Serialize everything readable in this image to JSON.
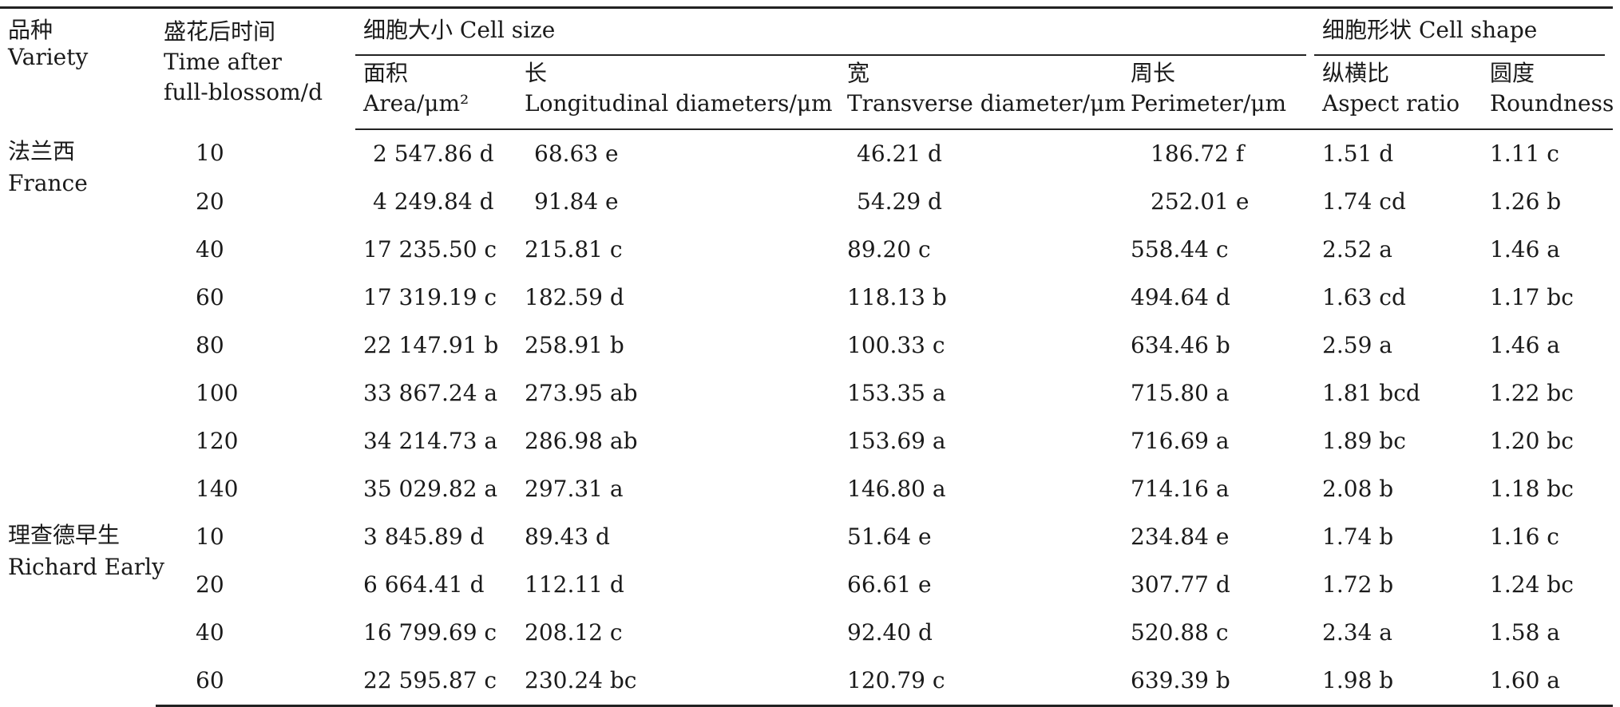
{
  "headers": {
    "variety": [
      "品种",
      "Variety"
    ],
    "time": [
      "盛花后时间",
      "Time after",
      "full-blossom/d"
    ],
    "cell_size": "细胞大小 Cell size",
    "cell_shape": "细胞形状 Cell shape",
    "area": [
      "面积",
      "Area/μm²"
    ],
    "longitudinal": [
      "长",
      "Longitudinal diameters/μm"
    ],
    "transverse": [
      "宽",
      "Transverse diameter/μm"
    ],
    "perimeter": [
      "周长",
      "Perimeter/μm"
    ],
    "aspect": [
      "纵横比",
      "Aspect ratio"
    ],
    "roundness": [
      "圆度",
      "Roundness"
    ]
  },
  "groups": [
    {
      "variety": [
        "法兰西",
        "France"
      ],
      "rows": [
        [
          "10",
          "2 547.86 d",
          "68.63 e",
          "46.21 d",
          "186.72 f",
          "1.51 d",
          "1.11 c"
        ],
        [
          "20",
          "4 249.84 d",
          "91.84 e",
          "54.29 d",
          "252.01 e",
          "1.74 cd",
          "1.26 b"
        ],
        [
          "40",
          "17 235.50 c",
          "215.81 c",
          "89.20 c",
          "558.44 c",
          "2.52 a",
          "1.46 a"
        ],
        [
          "60",
          "17 319.19 c",
          "182.59 d",
          "118.13 b",
          "494.64 d",
          "1.63 cd",
          "1.17 bc"
        ],
        [
          "80",
          "22 147.91 b",
          "258.91 b",
          "100.33 c",
          "634.46 b",
          "2.59 a",
          "1.46 a"
        ],
        [
          "100",
          "33 867.24 a",
          "273.95 ab",
          "153.35 a",
          "715.80 a",
          "1.81 bcd",
          "1.22 bc"
        ],
        [
          "120",
          "34 214.73 a",
          "286.98 ab",
          "153.69 a",
          "716.69 a",
          "1.89 bc",
          "1.20 bc"
        ],
        [
          "140",
          "35 029.82 a",
          "297.31 a",
          "146.80 a",
          "714.16 a",
          "2.08 b",
          "1.18 bc"
        ]
      ]
    },
    {
      "variety": [
        "理查德早生",
        "Richard Early"
      ],
      "rows": [
        [
          "10",
          "3 845.89 d",
          "89.43 d",
          "51.64 e",
          "234.84 e",
          "1.74 b",
          "1.16 c"
        ],
        [
          "20",
          "6 664.41 d",
          "112.11 d",
          "66.61 e",
          "307.77 d",
          "1.72 b",
          "1.24 bc"
        ],
        [
          "40",
          "16 799.69 c",
          "208.12 c",
          "92.40 d",
          "520.88 c",
          "2.34 a",
          "1.58 a"
        ],
        [
          "60",
          "22 595.87 c",
          "230.24 bc",
          "120.79 c",
          "639.39 b",
          "1.98 b",
          "1.60 a"
        ]
      ]
    }
  ]
}
